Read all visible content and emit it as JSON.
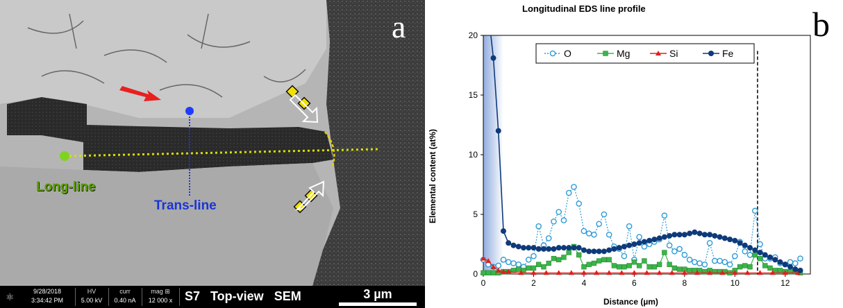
{
  "panel_a_label": "a",
  "panel_b_label": "b",
  "sem": {
    "long_line_label": "Long-line",
    "trans_line_label": "Trans-line",
    "info_bar": {
      "date": "9/28/2018",
      "time": "3:34:42 PM",
      "hv_label": "HV",
      "hv_value": "5.00 kV",
      "curr_label": "curr",
      "curr_value": "0.40 nA",
      "mag_label": "mag ⊞",
      "mag_value": "12 000 x",
      "caption": "S7   Top-view   SEM",
      "scale": "3 µm"
    }
  },
  "chart_data": {
    "type": "line",
    "title": "Longitudinal EDS line profile",
    "xlabel": "Distance (µm)",
    "ylabel": "Elemental content (at%)",
    "xlim": [
      0,
      13
    ],
    "ylim": [
      0,
      20
    ],
    "xticks": [
      0,
      2,
      4,
      6,
      8,
      10,
      12
    ],
    "yticks": [
      0,
      5,
      10,
      15,
      20
    ],
    "legend_position": "top",
    "dashed_vline_x": 10.9,
    "shaded_region_x": [
      0,
      0.8
    ],
    "series": [
      {
        "name": "O",
        "color": "#2e9bd6",
        "marker": "open-circle",
        "line": "dotted",
        "x": [
          0,
          0.2,
          0.4,
          0.6,
          0.8,
          1.0,
          1.2,
          1.4,
          1.6,
          1.8,
          2.0,
          2.2,
          2.4,
          2.6,
          2.8,
          3.0,
          3.2,
          3.4,
          3.6,
          3.8,
          4.0,
          4.2,
          4.4,
          4.6,
          4.8,
          5.0,
          5.2,
          5.4,
          5.6,
          5.8,
          6.0,
          6.2,
          6.4,
          6.6,
          6.8,
          7.0,
          7.2,
          7.4,
          7.6,
          7.8,
          8.0,
          8.2,
          8.4,
          8.6,
          8.8,
          9.0,
          9.2,
          9.4,
          9.6,
          9.8,
          10.0,
          10.2,
          10.4,
          10.6,
          10.8,
          11.0,
          11.2,
          11.4,
          11.6,
          11.8,
          12.0,
          12.2,
          12.4,
          12.6
        ],
        "values": [
          1.2,
          0.8,
          0.6,
          0.7,
          1.2,
          1.0,
          0.9,
          0.8,
          0.6,
          1.2,
          1.5,
          4.0,
          2.4,
          3.0,
          4.4,
          5.2,
          4.5,
          6.8,
          7.3,
          5.9,
          3.6,
          3.4,
          3.3,
          4.2,
          5.0,
          3.3,
          2.3,
          2.1,
          1.5,
          4.0,
          1.2,
          3.1,
          2.3,
          2.5,
          2.7,
          2.9,
          4.9,
          2.4,
          1.9,
          2.1,
          1.6,
          1.2,
          1.0,
          0.9,
          0.8,
          2.6,
          1.1,
          1.1,
          1.0,
          0.8,
          1.5,
          2.7,
          1.9,
          1.6,
          5.3,
          2.5,
          1.3,
          1.3,
          1.4,
          0.9,
          0.8,
          1.0,
          0.9,
          1.3
        ]
      },
      {
        "name": "Mg",
        "color": "#3ab54a",
        "marker": "square",
        "line": "solid",
        "x": [
          0,
          0.2,
          0.4,
          0.6,
          0.8,
          1.0,
          1.2,
          1.4,
          1.6,
          1.8,
          2.0,
          2.2,
          2.4,
          2.6,
          2.8,
          3.0,
          3.2,
          3.4,
          3.6,
          3.8,
          4.0,
          4.2,
          4.4,
          4.6,
          4.8,
          5.0,
          5.2,
          5.4,
          5.6,
          5.8,
          6.0,
          6.2,
          6.4,
          6.6,
          6.8,
          7.0,
          7.2,
          7.4,
          7.6,
          7.8,
          8.0,
          8.2,
          8.4,
          8.6,
          8.8,
          9.0,
          9.2,
          9.4,
          9.6,
          9.8,
          10.0,
          10.2,
          10.4,
          10.6,
          10.8,
          11.0,
          11.2,
          11.4,
          11.6,
          11.8,
          12.0,
          12.2,
          12.4,
          12.6
        ],
        "values": [
          0.1,
          0.1,
          0.1,
          0.1,
          0.2,
          0.2,
          0.3,
          0.4,
          0.3,
          0.5,
          0.5,
          0.8,
          0.6,
          0.9,
          1.3,
          1.2,
          1.4,
          1.8,
          2.3,
          1.6,
          0.6,
          0.8,
          0.9,
          1.1,
          1.2,
          1.2,
          0.7,
          0.6,
          0.6,
          0.7,
          1.0,
          0.7,
          1.1,
          0.6,
          0.6,
          0.8,
          1.8,
          0.8,
          0.5,
          0.4,
          0.4,
          0.3,
          0.3,
          0.3,
          0.2,
          0.3,
          0.2,
          0.2,
          0.2,
          0.1,
          0.3,
          0.6,
          0.7,
          0.6,
          1.6,
          1.3,
          0.7,
          0.5,
          0.3,
          0.3,
          0.2,
          0.2,
          0.2,
          0.1
        ]
      },
      {
        "name": "Si",
        "color": "#e0201c",
        "marker": "triangle",
        "line": "solid",
        "x": [
          0,
          0.2,
          0.4,
          0.6,
          0.8,
          1.0,
          1.5,
          2.0,
          2.5,
          3.0,
          3.5,
          4.0,
          4.5,
          5.0,
          5.5,
          6.0,
          6.5,
          7.0,
          7.5,
          8.0,
          8.5,
          9.0,
          9.5,
          10.0,
          10.5,
          11.0,
          11.5,
          12.0,
          12.5
        ],
        "values": [
          1.3,
          1.1,
          0.6,
          0.3,
          0.2,
          0.2,
          0.1,
          0.1,
          0.1,
          0.1,
          0.1,
          0.1,
          0.1,
          0.1,
          0.1,
          0.1,
          0.1,
          0.1,
          0.1,
          0.1,
          0.1,
          0.1,
          0.1,
          0.1,
          0.1,
          0.1,
          0.1,
          0.1,
          0.1
        ]
      },
      {
        "name": "Fe",
        "color": "#0e3a7a",
        "marker": "filled-circle",
        "line": "solid",
        "x": [
          0.4,
          0.6,
          0.8,
          1.0,
          1.2,
          1.4,
          1.6,
          1.8,
          2.0,
          2.2,
          2.4,
          2.6,
          2.8,
          3.0,
          3.2,
          3.4,
          3.6,
          3.8,
          4.0,
          4.2,
          4.4,
          4.6,
          4.8,
          5.0,
          5.2,
          5.4,
          5.6,
          5.8,
          6.0,
          6.2,
          6.4,
          6.6,
          6.8,
          7.0,
          7.2,
          7.4,
          7.6,
          7.8,
          8.0,
          8.2,
          8.4,
          8.6,
          8.8,
          9.0,
          9.2,
          9.4,
          9.6,
          9.8,
          10.0,
          10.2,
          10.4,
          10.6,
          10.8,
          11.0,
          11.2,
          11.4,
          11.6,
          11.8,
          12.0,
          12.2,
          12.4,
          12.6
        ],
        "values": [
          18.1,
          12.0,
          3.6,
          2.6,
          2.4,
          2.3,
          2.2,
          2.2,
          2.2,
          2.1,
          2.1,
          2.1,
          2.1,
          2.2,
          2.2,
          2.2,
          2.2,
          2.2,
          2.0,
          1.9,
          1.9,
          1.9,
          1.9,
          2.0,
          2.1,
          2.2,
          2.3,
          2.4,
          2.5,
          2.6,
          2.7,
          2.8,
          2.9,
          3.0,
          3.1,
          3.2,
          3.3,
          3.3,
          3.3,
          3.4,
          3.5,
          3.4,
          3.3,
          3.3,
          3.2,
          3.1,
          3.0,
          2.9,
          2.8,
          2.6,
          2.4,
          2.2,
          2.0,
          1.8,
          1.6,
          1.4,
          1.2,
          1.0,
          0.8,
          0.6,
          0.4,
          0.3
        ]
      }
    ]
  }
}
